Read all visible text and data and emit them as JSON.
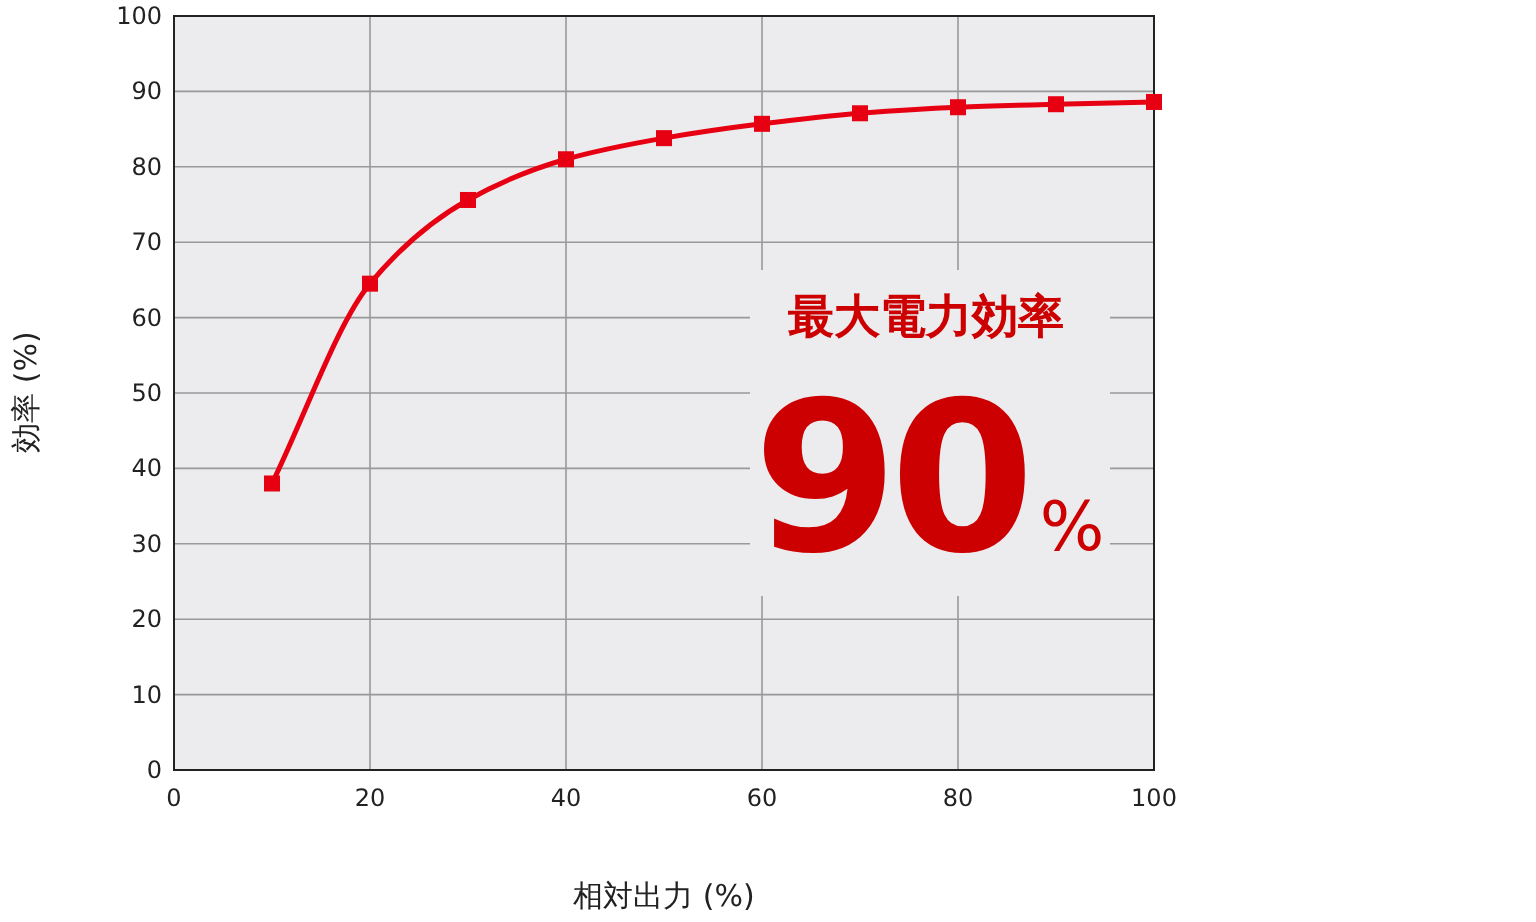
{
  "chart_data": {
    "type": "line",
    "xlabel": "相対出力 (%)",
    "ylabel": "効率 (%)",
    "x": [
      10,
      20,
      30,
      40,
      50,
      60,
      70,
      80,
      90,
      100
    ],
    "series": [
      {
        "color": "#e60012",
        "values": [
          38,
          64.5,
          75.6,
          81,
          83.8,
          85.7,
          87.1,
          87.9,
          88.3,
          88.6
        ]
      }
    ],
    "xlim": [
      0,
      100
    ],
    "ylim": [
      0,
      100
    ],
    "xticks": [
      0,
      20,
      40,
      60,
      80,
      100
    ],
    "yticks": [
      0,
      10,
      20,
      30,
      40,
      50,
      60,
      70,
      80,
      90,
      100
    ],
    "grid": true,
    "marker": "square",
    "line_style": "solid",
    "annotations": [
      "最大電力効率",
      "90",
      "%"
    ]
  }
}
